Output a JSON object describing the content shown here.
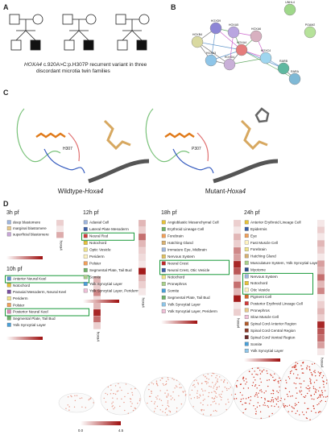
{
  "panel_a": {
    "label": "A",
    "caption_gene": "HOXA4",
    "caption": " c.920A>C:p.H307P recurrent variant in three discordant microtia twin families"
  },
  "panel_b": {
    "label": "B",
    "nodes": [
      {
        "label": "HOXD9",
        "color": "#8d86d6"
      },
      {
        "label": "HOXB4",
        "color": "#d9d9a0"
      },
      {
        "label": "HOXA5",
        "color": "#b9a6e0"
      },
      {
        "label": "HOXA4",
        "color": "#e57c7c"
      },
      {
        "label": "HOXA3",
        "color": "#8ec5e8"
      },
      {
        "label": "HOXD4",
        "color": "#c9b0d8"
      },
      {
        "label": "HOXA6",
        "color": "#d8b0c0"
      },
      {
        "label": "HOXC4",
        "color": "#9fd6ef"
      },
      {
        "label": "RARB",
        "color": "#5fb8a0"
      },
      {
        "label": "RARA",
        "color": "#7fb9d6"
      },
      {
        "label": "UNHL4",
        "color": "#9fd88a"
      },
      {
        "label": "PGAM2",
        "color": "#b6e29a"
      }
    ]
  },
  "panel_c": {
    "label": "C",
    "wt_residue": "H307",
    "mut_residue": "P307",
    "wt_title": "Wildtype-",
    "mut_title": "Mutant-",
    "gene": "Hoxa4"
  },
  "panel_d": {
    "label": "D",
    "gene": "hoxa4",
    "colorbar_min": "0.0",
    "colorbar_max": "4.5",
    "groups": [
      {
        "title": "3h pf",
        "items": [
          {
            "label": "deep blastomere",
            "color": "#9fb6de"
          },
          {
            "label": "marginal blastomere",
            "color": "#e8c98a"
          },
          {
            "label": "superficial blastomere",
            "color": "#c8a6d8"
          }
        ],
        "values": [
          0.2,
          0.1,
          0.35
        ]
      },
      {
        "title": "10h pf",
        "items": [
          {
            "label": "Anterior Neural Keel",
            "color": "#5b8fd6",
            "highlight": true
          },
          {
            "label": "Notochord",
            "color": "#e6c23a"
          },
          {
            "label": "Paraxial Mesoderm, Neural Keel",
            "color": "#7a4fa0"
          },
          {
            "label": "Periderm",
            "color": "#f1e48a"
          },
          {
            "label": "Polster",
            "color": "#f2a05a"
          },
          {
            "label": "Posterior Neural Keel",
            "color": "#d88ab6",
            "highlight": true
          },
          {
            "label": "Segmental Plate, Tail Bud",
            "color": "#6fb36a"
          },
          {
            "label": "Yolk Syncytial Layer",
            "color": "#4aa0d8"
          }
        ],
        "values": [
          0.3,
          0.2,
          0.5,
          0.15,
          0.3,
          0.9,
          0.6,
          0.2
        ]
      },
      {
        "title": "12h pf",
        "items": [
          {
            "label": "Adaxial Cell",
            "color": "#9fb6de"
          },
          {
            "label": "Lateral Plate Mesoderm",
            "color": "#3b5fa8"
          },
          {
            "label": "Neural Rod",
            "color": "#d23a3a",
            "highlight": true
          },
          {
            "label": "Notochord",
            "color": "#e6c23a"
          },
          {
            "label": "Optic Vesicle",
            "color": "#f1e48a"
          },
          {
            "label": "Periderm",
            "color": "#fff3c0"
          },
          {
            "label": "Polster",
            "color": "#f2a05a"
          },
          {
            "label": "Segmental Plate, Tail Bud",
            "color": "#6fb36a"
          },
          {
            "label": "Somite",
            "color": "#a8d08a"
          },
          {
            "label": "Yolk Syncytial Layer",
            "color": "#4aa0d8"
          },
          {
            "label": "Yolk Syncytial Layer, Periderm",
            "color": "#f0c0d8"
          }
        ],
        "values": [
          0.3,
          0.2,
          0.6,
          0.3,
          0.2,
          0.15,
          0.1,
          0.95,
          0.3,
          0.2,
          0.1
        ]
      },
      {
        "title": "18h pf",
        "items": [
          {
            "label": "Angioblastic Mesenchymal Cell",
            "color": "#e6c23a"
          },
          {
            "label": "Erythroid Lineage Cell",
            "color": "#6fb36a"
          },
          {
            "label": "Forebrain",
            "color": "#f2a05a"
          },
          {
            "label": "Hatching Gland",
            "color": "#d8b070"
          },
          {
            "label": "Immature Eye, Midbrain",
            "color": "#9fb6de"
          },
          {
            "label": "Nervous System",
            "color": "#e0c060"
          },
          {
            "label": "Neural Crest",
            "color": "#c02828",
            "highlight": true
          },
          {
            "label": "Neural Crest, Otic Vesicle",
            "color": "#3b5fa8",
            "highlight": true
          },
          {
            "label": "Notochord",
            "color": "#f1e48a"
          },
          {
            "label": "Pronephros",
            "color": "#a8d08a"
          },
          {
            "label": "Somite",
            "color": "#4aa0d8"
          },
          {
            "label": "Segmental Plate, Tail Bud",
            "color": "#6fb36a"
          },
          {
            "label": "Yolk Syncytial Layer",
            "color": "#8ec5e8"
          },
          {
            "label": "Yolk Syncytial Layer, Periderm",
            "color": "#f0c0d8"
          }
        ],
        "values": [
          0.2,
          0.1,
          0.3,
          0.2,
          0.5,
          0.4,
          0.9,
          0.7,
          0.2,
          0.6,
          0.3,
          0.95,
          0.1,
          0.2
        ]
      },
      {
        "title": "24h pf",
        "items": [
          {
            "label": "Anterior Erythroid Lineage Cell",
            "color": "#e6c23a"
          },
          {
            "label": "Epidermis",
            "color": "#3b5fa8"
          },
          {
            "label": "Eye",
            "color": "#f2a05a"
          },
          {
            "label": "Fast Muscle Cell",
            "color": "#fff3c0"
          },
          {
            "label": "Forebrain",
            "color": "#f1e48a"
          },
          {
            "label": "Hatching Gland",
            "color": "#d8b070"
          },
          {
            "label": "Musculature System, Yolk Syncytial Layer",
            "color": "#a8d08a"
          },
          {
            "label": "Myotome",
            "color": "#2f4f8f"
          },
          {
            "label": "Nervous System",
            "color": "#9fb6de",
            "highlight": true
          },
          {
            "label": "Notochord",
            "color": "#e6c23a",
            "highlight": true
          },
          {
            "label": "Otic Vesicle",
            "color": "#fff3c0",
            "highlight": true
          },
          {
            "label": "Pigment Cell",
            "color": "#d86a2a"
          },
          {
            "label": "Posterior Erythroid Lineage Cell",
            "color": "#d23a3a"
          },
          {
            "label": "Pronephros",
            "color": "#e8c98a"
          },
          {
            "label": "Slow Muscle Cell",
            "color": "#f0c0d8"
          },
          {
            "label": "Spinal Cord Anterior Region",
            "color": "#b05a2a"
          },
          {
            "label": "Spinal Cord Central Region",
            "color": "#8a3a2a"
          },
          {
            "label": "Spinal Cord Ventral Region",
            "color": "#6a2a2a"
          },
          {
            "label": "Somite",
            "color": "#4aa0d8"
          },
          {
            "label": "Yolk Syncytial Layer",
            "color": "#8ec5e8"
          }
        ],
        "values": [
          0.1,
          0.2,
          0.1,
          0.3,
          0.2,
          0.1,
          0.4,
          0.3,
          0.6,
          0.3,
          0.5,
          0.1,
          0.2,
          0.3,
          0.2,
          0.9,
          0.7,
          0.6,
          0.4,
          0.1
        ]
      }
    ]
  }
}
